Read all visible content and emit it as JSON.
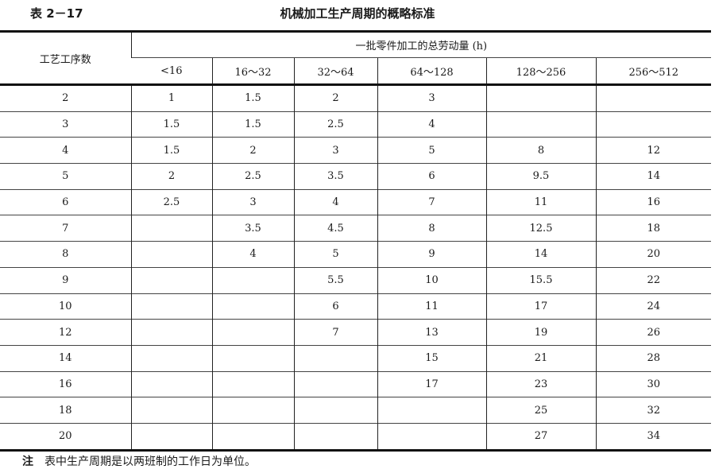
{
  "caption": {
    "number": "表 2－17",
    "title": "机械加工生产周期的概略标准"
  },
  "table": {
    "row_header": "工艺工序数",
    "group_header": "一批零件加工的总劳动量 (h)",
    "columns": [
      "<16",
      "16～32",
      "32～64",
      "64～128",
      "128～256",
      "256～512"
    ],
    "rows": [
      [
        "2",
        "1",
        "1.5",
        "2",
        "3",
        "",
        ""
      ],
      [
        "3",
        "1.5",
        "1.5",
        "2.5",
        "4",
        "",
        ""
      ],
      [
        "4",
        "1.5",
        "2",
        "3",
        "5",
        "8",
        "12"
      ],
      [
        "5",
        "2",
        "2.5",
        "3.5",
        "6",
        "9.5",
        "14"
      ],
      [
        "6",
        "2.5",
        "3",
        "4",
        "7",
        "11",
        "16"
      ],
      [
        "7",
        "",
        "3.5",
        "4.5",
        "8",
        "12.5",
        "18"
      ],
      [
        "8",
        "",
        "4",
        "5",
        "9",
        "14",
        "20"
      ],
      [
        "9",
        "",
        "",
        "5.5",
        "10",
        "15.5",
        "22"
      ],
      [
        "10",
        "",
        "",
        "6",
        "11",
        "17",
        "24"
      ],
      [
        "12",
        "",
        "",
        "7",
        "13",
        "19",
        "26"
      ],
      [
        "14",
        "",
        "",
        "",
        "15",
        "21",
        "28"
      ],
      [
        "16",
        "",
        "",
        "",
        "17",
        "23",
        "30"
      ],
      [
        "18",
        "",
        "",
        "",
        "",
        "25",
        "32"
      ],
      [
        "20",
        "",
        "",
        "",
        "",
        "27",
        "34"
      ]
    ]
  },
  "note": {
    "label": "注",
    "text": "表中生产周期是以两班制的工作日为单位。"
  }
}
